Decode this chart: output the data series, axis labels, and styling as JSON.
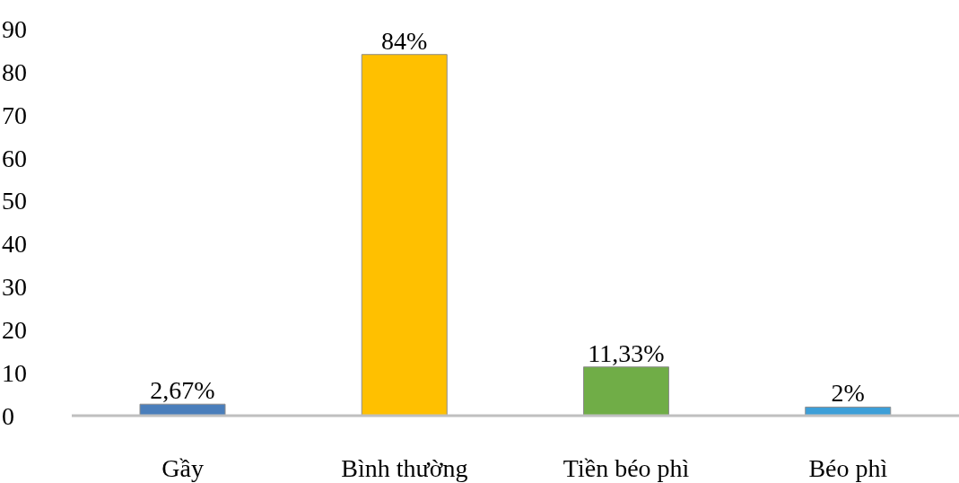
{
  "chart_data": {
    "type": "bar",
    "categories": [
      "Gầy",
      "Bình thường",
      "Tiền béo phì",
      "Béo phì"
    ],
    "values": [
      2.67,
      84,
      11.33,
      2
    ],
    "colors": [
      "#4a7ebb",
      "#ffc000",
      "#70ad47",
      "#3d9fd8"
    ],
    "value_labels": [
      "2,67%",
      "84%",
      "11,33%",
      "2%"
    ],
    "ylim": [
      0,
      90
    ],
    "yticks": [
      0,
      10,
      20,
      30,
      40,
      50,
      60,
      70,
      80,
      90
    ],
    "grid": false,
    "legend": false
  }
}
